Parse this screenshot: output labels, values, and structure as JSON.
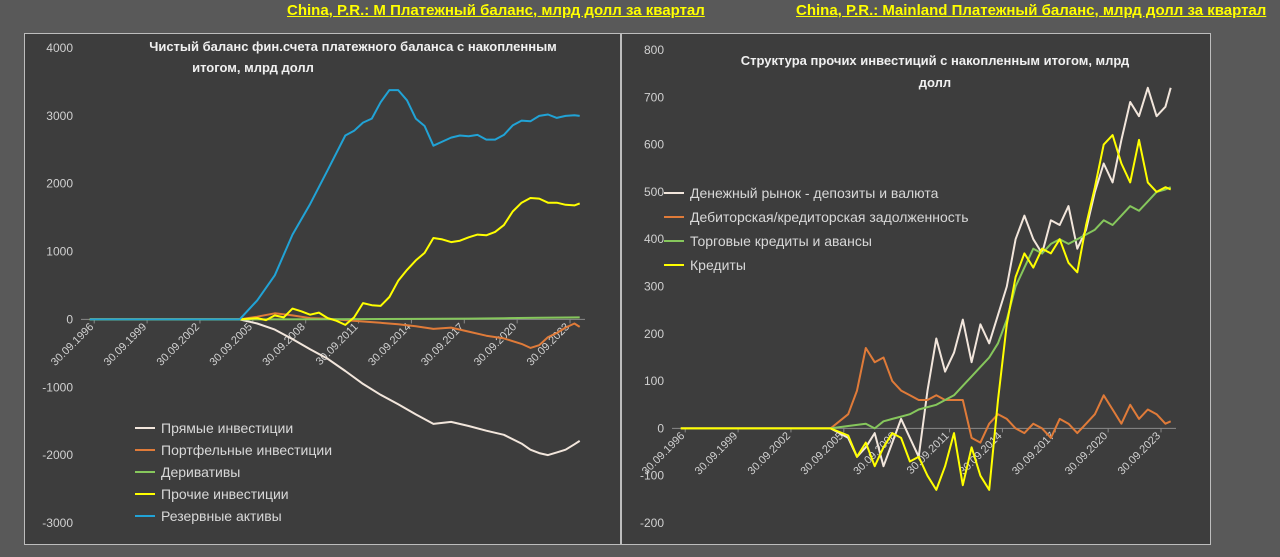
{
  "header": {
    "left_country": "China, P.R.: M",
    "left_title": "Платежный баланс, млрд долл за квартал",
    "right_country": "China, P.R.: Mainland",
    "right_title": "Платежный баланс, млрд долл за квартал"
  },
  "chart_data": [
    {
      "type": "line",
      "title_line1": "Чистый баланс фин.счета платежного баланса с накопленным",
      "title_line2": "итогом, млрд долл",
      "x_ticks": [
        "30.09.1996",
        "30.09.1999",
        "30.09.2002",
        "30.09.2005",
        "30.09.2008",
        "30.09.2011",
        "30.09.2014",
        "30.09.2017",
        "30.09.2020",
        "30.09.2023"
      ],
      "y_ticks": [
        "4000",
        "3000",
        "2000",
        "1000",
        "0",
        "-1000",
        "-2000",
        "-3000"
      ],
      "ylim": [
        -3000,
        4000
      ],
      "xlim": [
        1996.0,
        2024.6
      ],
      "grid": false,
      "legend_position": "bottom-left",
      "series": [
        {
          "name": "Прямые инвестиции",
          "color": "#f2e6dc",
          "x": [
            1996.5,
            2005.0,
            2006.0,
            2007.0,
            2008.0,
            2009.0,
            2010.0,
            2011.0,
            2012.0,
            2013.0,
            2014.0,
            2015.0,
            2016.0,
            2017.0,
            2018.0,
            2019.0,
            2020.0,
            2021.0,
            2021.5,
            2022.0,
            2022.5,
            2023.0,
            2023.5,
            2024.0,
            2024.3
          ],
          "y": [
            0,
            0,
            -60,
            -150,
            -290,
            -440,
            -580,
            -760,
            -950,
            -1110,
            -1250,
            -1400,
            -1540,
            -1510,
            -1570,
            -1640,
            -1700,
            -1830,
            -1920,
            -1970,
            -2000,
            -1960,
            -1920,
            -1840,
            -1790
          ]
        },
        {
          "name": "Портфельные инвестиции",
          "color": "#e07b39",
          "x": [
            1996.5,
            2005.0,
            2006.0,
            2007.0,
            2008.0,
            2009.0,
            2010.0,
            2011.0,
            2012.0,
            2013.0,
            2014.0,
            2015.0,
            2016.0,
            2017.0,
            2018.0,
            2019.0,
            2020.0,
            2021.0,
            2021.5,
            2022.0,
            2022.5,
            2023.0,
            2023.5,
            2024.0,
            2024.3
          ],
          "y": [
            0,
            0,
            40,
            90,
            60,
            20,
            10,
            -10,
            -30,
            -50,
            -70,
            -100,
            -140,
            -120,
            -180,
            -240,
            -280,
            -360,
            -420,
            -380,
            -260,
            -200,
            -120,
            -60,
            -110
          ]
        },
        {
          "name": "Деривативы",
          "color": "#86c75c",
          "x": [
            1996.5,
            2005.0,
            2010.0,
            2015.0,
            2018.0,
            2020.0,
            2022.0,
            2024.3
          ],
          "y": [
            0,
            0,
            3,
            8,
            12,
            18,
            25,
            30
          ]
        },
        {
          "name": "Прочие инвестиции",
          "color": "#ffff00",
          "x": [
            1996.5,
            2005.0,
            2006.0,
            2006.5,
            2007.0,
            2007.5,
            2008.0,
            2008.5,
            2009.0,
            2009.5,
            2010.0,
            2010.5,
            2011.0,
            2011.5,
            2012.0,
            2012.5,
            2013.0,
            2013.5,
            2014.0,
            2014.5,
            2015.0,
            2015.5,
            2016.0,
            2016.5,
            2017.0,
            2017.5,
            2018.0,
            2018.5,
            2019.0,
            2019.5,
            2020.0,
            2020.5,
            2021.0,
            2021.5,
            2022.0,
            2022.5,
            2023.0,
            2023.5,
            2024.0,
            2024.3
          ],
          "y": [
            0,
            0,
            20,
            -10,
            60,
            30,
            160,
            120,
            70,
            100,
            20,
            -20,
            -80,
            30,
            240,
            210,
            200,
            330,
            570,
            730,
            870,
            980,
            1200,
            1180,
            1140,
            1160,
            1210,
            1250,
            1240,
            1290,
            1390,
            1590,
            1720,
            1790,
            1780,
            1720,
            1720,
            1690,
            1680,
            1710
          ]
        },
        {
          "name": "Резервные активы",
          "color": "#21a3d6",
          "x": [
            1996.5,
            2005.0,
            2006.0,
            2007.0,
            2008.0,
            2009.0,
            2010.0,
            2011.0,
            2011.5,
            2012.0,
            2012.5,
            2013.0,
            2013.5,
            2014.0,
            2014.5,
            2015.0,
            2015.5,
            2016.0,
            2016.5,
            2017.0,
            2017.5,
            2018.0,
            2018.5,
            2019.0,
            2019.5,
            2020.0,
            2020.5,
            2021.0,
            2021.5,
            2022.0,
            2022.5,
            2023.0,
            2023.5,
            2024.0,
            2024.3
          ],
          "y": [
            0,
            0,
            280,
            650,
            1250,
            1700,
            2200,
            2710,
            2780,
            2900,
            2960,
            3200,
            3380,
            3380,
            3230,
            2960,
            2850,
            2560,
            2620,
            2680,
            2710,
            2700,
            2720,
            2650,
            2650,
            2720,
            2860,
            2930,
            2920,
            3000,
            3020,
            2970,
            3000,
            3010,
            3000
          ]
        }
      ]
    },
    {
      "type": "line",
      "title_line1": "Структура прочих инвестиций с накопленным итогом, млрд",
      "title_line2": "долл",
      "x_ticks": [
        "30.09.1996",
        "30.09.1999",
        "30.09.2002",
        "30.09.2005",
        "30.09.2008",
        "30.09.2011",
        "30.09.2014",
        "30.09.2017",
        "30.09.2020",
        "30.09.2023"
      ],
      "y_ticks": [
        "800",
        "700",
        "600",
        "500",
        "400",
        "300",
        "200",
        "100",
        "0",
        "-100",
        "-200"
      ],
      "ylim": [
        -200,
        800
      ],
      "xlim": [
        1996.0,
        2024.6
      ],
      "grid": false,
      "legend_position": "top-left",
      "series": [
        {
          "name": "Денежный рынок - депозиты и валюта",
          "color": "#f2e6dc",
          "x": [
            1996.5,
            2005.0,
            2006.0,
            2006.5,
            2007.0,
            2007.5,
            2008.0,
            2008.5,
            2009.0,
            2009.5,
            2010.0,
            2010.5,
            2011.0,
            2011.5,
            2012.0,
            2012.5,
            2013.0,
            2013.5,
            2014.0,
            2014.5,
            2015.0,
            2015.5,
            2016.0,
            2016.5,
            2017.0,
            2017.5,
            2018.0,
            2018.5,
            2019.0,
            2019.5,
            2020.0,
            2020.5,
            2021.0,
            2021.5,
            2022.0,
            2022.5,
            2023.0,
            2023.5,
            2024.0,
            2024.3
          ],
          "y": [
            0,
            0,
            -20,
            -60,
            -40,
            -10,
            -80,
            -30,
            20,
            -20,
            -60,
            80,
            190,
            120,
            160,
            230,
            140,
            220,
            180,
            240,
            300,
            400,
            450,
            400,
            370,
            440,
            430,
            470,
            380,
            420,
            500,
            560,
            520,
            610,
            690,
            660,
            720,
            660,
            680,
            720
          ]
        },
        {
          "name": "Дебиторская/кредиторская задолженность",
          "color": "#e07b39",
          "x": [
            1996.5,
            2005.0,
            2006.0,
            2006.5,
            2007.0,
            2007.5,
            2008.0,
            2008.5,
            2009.0,
            2009.5,
            2010.0,
            2010.5,
            2011.0,
            2011.5,
            2012.0,
            2012.5,
            2013.0,
            2013.5,
            2014.0,
            2014.5,
            2015.0,
            2015.5,
            2016.0,
            2016.5,
            2017.0,
            2017.5,
            2018.0,
            2018.5,
            2019.0,
            2019.5,
            2020.0,
            2020.5,
            2021.0,
            2021.5,
            2022.0,
            2022.5,
            2023.0,
            2023.5,
            2024.0,
            2024.3
          ],
          "y": [
            0,
            0,
            30,
            80,
            170,
            140,
            150,
            100,
            80,
            70,
            60,
            60,
            70,
            60,
            60,
            60,
            -20,
            -30,
            10,
            30,
            20,
            0,
            -10,
            10,
            0,
            -20,
            20,
            10,
            -10,
            10,
            30,
            70,
            40,
            10,
            50,
            20,
            40,
            30,
            10,
            15
          ]
        },
        {
          "name": "Торговые кредиты и авансы",
          "color": "#86c75c",
          "x": [
            1996.5,
            2005.0,
            2006.0,
            2007.0,
            2007.5,
            2008.0,
            2008.5,
            2009.0,
            2009.5,
            2010.0,
            2010.5,
            2011.0,
            2011.5,
            2012.0,
            2012.5,
            2013.0,
            2013.5,
            2014.0,
            2014.5,
            2015.0,
            2015.5,
            2016.0,
            2016.5,
            2017.0,
            2017.5,
            2018.0,
            2018.5,
            2019.0,
            2019.5,
            2020.0,
            2020.5,
            2021.0,
            2021.5,
            2022.0,
            2022.5,
            2023.0,
            2023.5,
            2024.0,
            2024.3
          ],
          "y": [
            0,
            0,
            5,
            10,
            0,
            15,
            20,
            25,
            30,
            40,
            45,
            50,
            60,
            70,
            90,
            110,
            130,
            150,
            180,
            230,
            300,
            340,
            380,
            370,
            390,
            400,
            390,
            400,
            410,
            420,
            440,
            430,
            450,
            470,
            460,
            480,
            500,
            505,
            510
          ]
        },
        {
          "name": "Кредиты",
          "color": "#ffff00",
          "x": [
            1996.5,
            2005.0,
            2006.0,
            2006.5,
            2007.0,
            2007.5,
            2008.0,
            2008.5,
            2009.0,
            2009.5,
            2010.0,
            2010.5,
            2011.0,
            2011.5,
            2012.0,
            2012.5,
            2013.0,
            2013.5,
            2014.0,
            2014.5,
            2015.0,
            2015.5,
            2016.0,
            2016.5,
            2017.0,
            2017.5,
            2018.0,
            2018.5,
            2019.0,
            2019.5,
            2020.0,
            2020.5,
            2021.0,
            2021.5,
            2022.0,
            2022.5,
            2023.0,
            2023.5,
            2024.0,
            2024.3
          ],
          "y": [
            0,
            0,
            -15,
            -60,
            -30,
            -80,
            -40,
            -10,
            -20,
            -70,
            -60,
            -100,
            -130,
            -80,
            -10,
            -120,
            -40,
            -100,
            -130,
            60,
            220,
            320,
            370,
            340,
            380,
            370,
            400,
            350,
            330,
            430,
            510,
            600,
            620,
            560,
            520,
            610,
            520,
            500,
            510,
            505
          ]
        }
      ]
    }
  ]
}
